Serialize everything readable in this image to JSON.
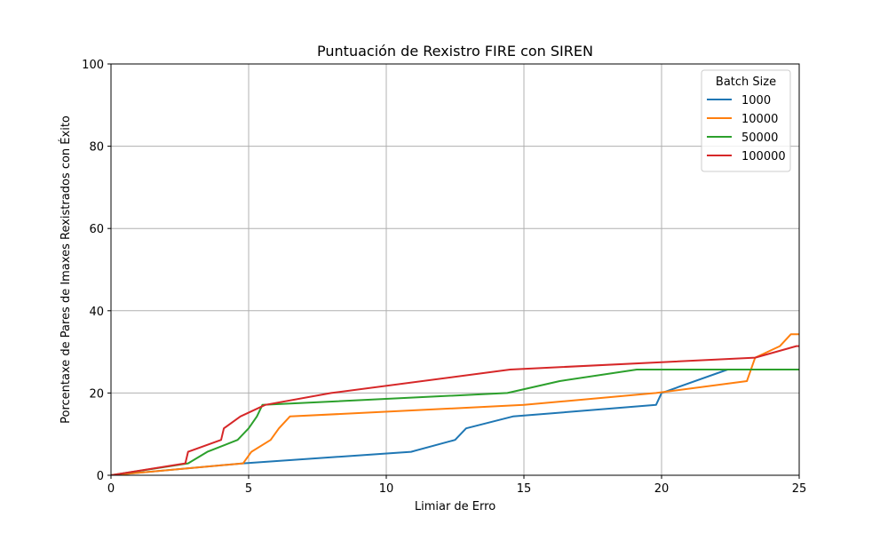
{
  "chart_data": {
    "type": "line",
    "title": "Puntuación de Rexistro FIRE con SIREN",
    "xlabel": "Limiar de Erro",
    "ylabel": "Porcentaxe de Pares de Imaxes Rexistrados con Éxito",
    "xlim": [
      0,
      25
    ],
    "ylim": [
      0,
      100
    ],
    "xticks": [
      0,
      5,
      10,
      15,
      20,
      25
    ],
    "yticks": [
      0,
      20,
      40,
      60,
      80,
      100
    ],
    "grid": true,
    "legend": {
      "title": "Batch Size",
      "placement": "top-right"
    },
    "series": [
      {
        "name": "1000",
        "color": "#1f77b4",
        "x": [
          0,
          4.8,
          10.9,
          12.5,
          12.9,
          14.6,
          19.8,
          20.0,
          22.4,
          25.0
        ],
        "y": [
          0,
          2.9,
          5.7,
          8.6,
          11.4,
          14.3,
          17.1,
          20.0,
          25.7,
          25.7
        ]
      },
      {
        "name": "10000",
        "color": "#ff7f0e",
        "x": [
          0,
          4.8,
          5.1,
          5.8,
          6.1,
          6.5,
          15.0,
          19.8,
          23.1,
          23.4,
          24.3,
          24.7,
          25.0
        ],
        "y": [
          0,
          2.9,
          5.7,
          8.6,
          11.4,
          14.3,
          17.1,
          20.0,
          22.9,
          28.6,
          31.4,
          34.3,
          34.3
        ]
      },
      {
        "name": "50000",
        "color": "#2ca02c",
        "x": [
          0,
          2.8,
          3.5,
          4.6,
          5.0,
          5.3,
          5.5,
          14.4,
          16.3,
          19.1,
          25.0
        ],
        "y": [
          0,
          2.9,
          5.7,
          8.6,
          11.4,
          14.3,
          17.1,
          20.0,
          22.9,
          25.7,
          25.7
        ]
      },
      {
        "name": "100000",
        "color": "#d62728",
        "x": [
          0,
          2.7,
          2.8,
          4.0,
          4.1,
          4.7,
          5.6,
          8.0,
          14.5,
          23.4,
          24.9,
          25.0
        ],
        "y": [
          0,
          2.9,
          5.7,
          8.6,
          11.4,
          14.3,
          17.1,
          20.0,
          25.7,
          28.6,
          31.4,
          31.4
        ]
      }
    ]
  }
}
